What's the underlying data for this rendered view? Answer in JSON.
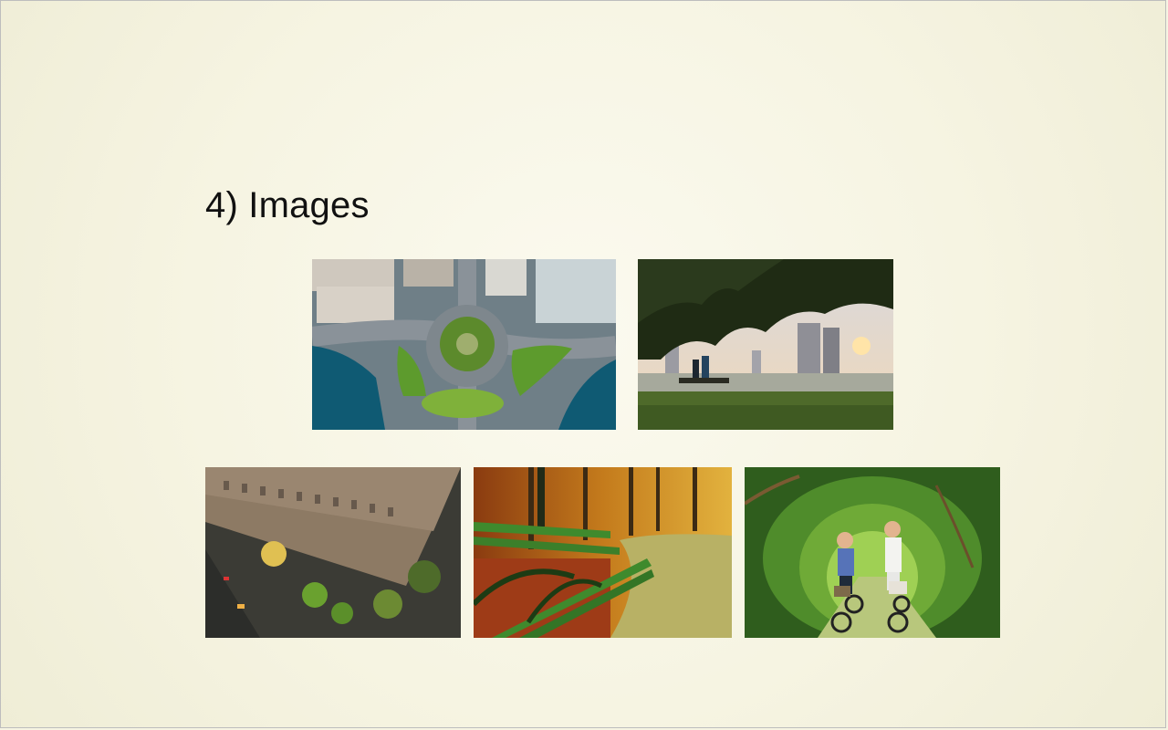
{
  "section": {
    "title": "4) Images"
  },
  "images": [
    {
      "name": "aerial-roundabout-photo"
    },
    {
      "name": "lake-city-view-photo"
    },
    {
      "name": "aerial-building-street-photo"
    },
    {
      "name": "park-bench-photo"
    },
    {
      "name": "women-biking-photo"
    }
  ]
}
